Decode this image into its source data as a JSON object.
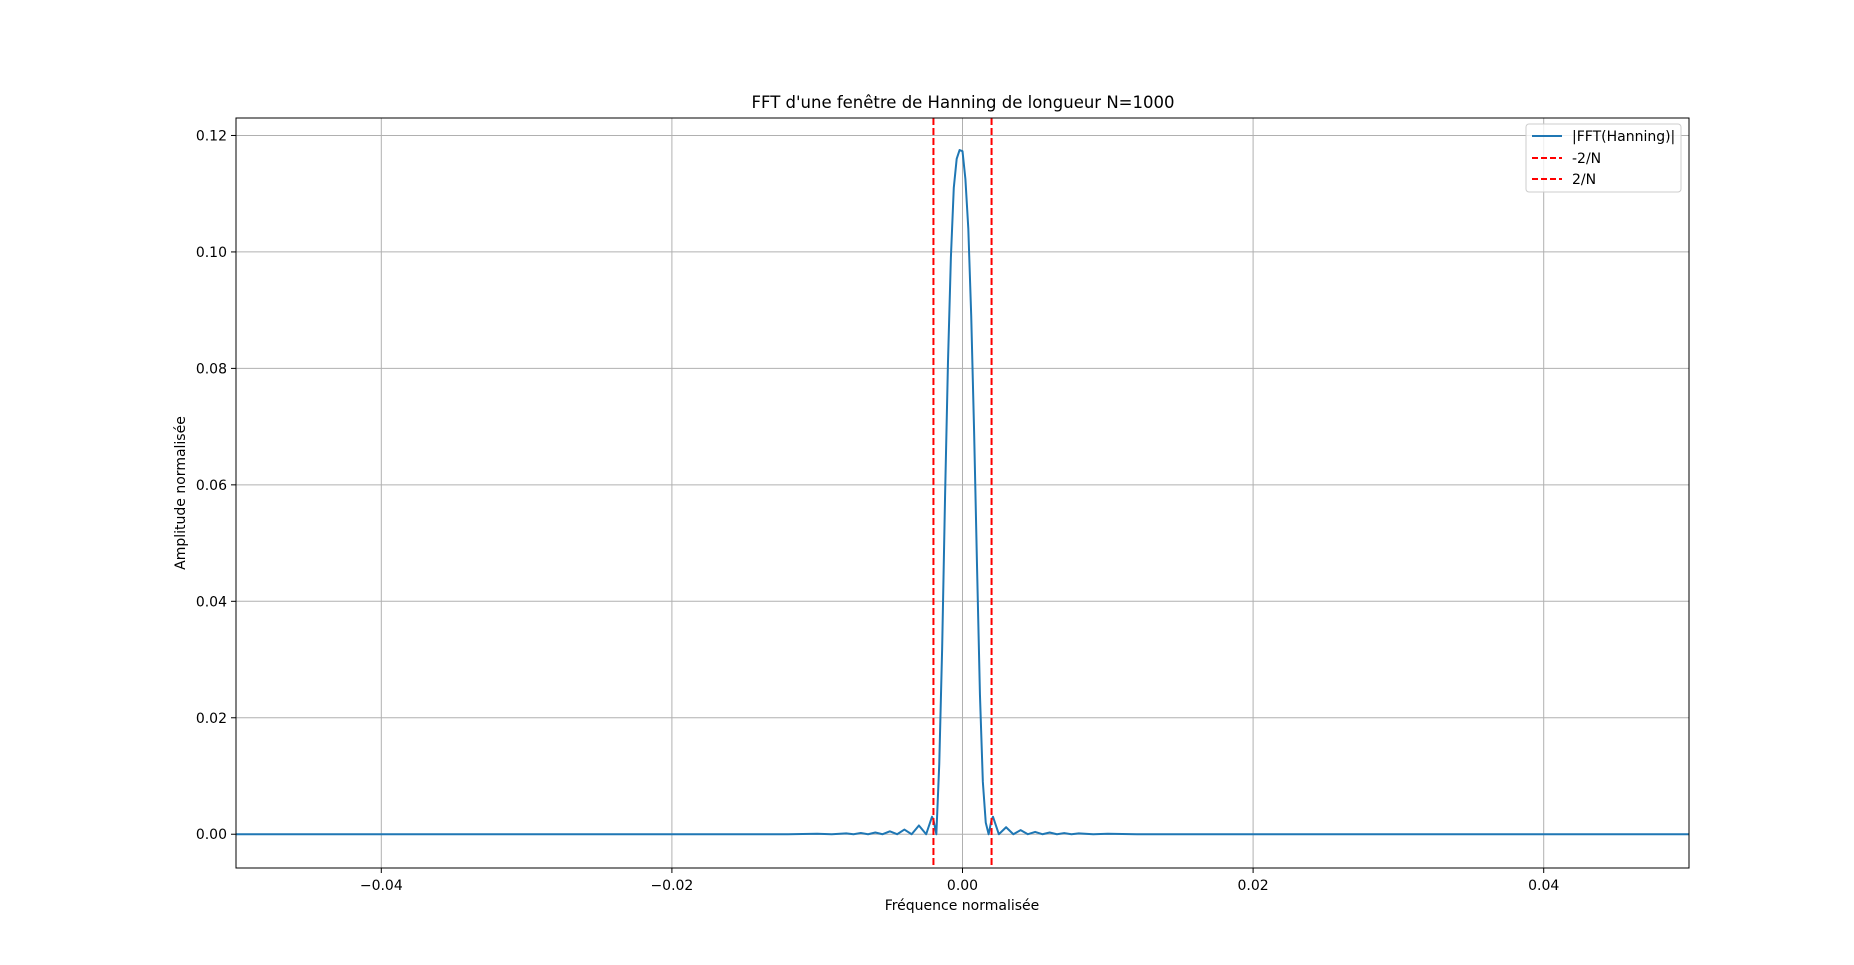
{
  "chart_data": {
    "type": "line",
    "title": "FFT d'une fenêtre de Hanning de longueur N=1000",
    "xlabel": "Fréquence normalisée",
    "ylabel": "Amplitude normalisée",
    "xlim": [
      -0.05,
      0.05
    ],
    "ylim": [
      -0.0058,
      0.123
    ],
    "xticks": [
      -0.04,
      -0.02,
      0.0,
      0.02,
      0.04
    ],
    "xtick_labels": [
      "−0.04",
      "−0.02",
      "0.00",
      "0.02",
      "0.04"
    ],
    "yticks": [
      0.0,
      0.02,
      0.04,
      0.06,
      0.08,
      0.1,
      0.12
    ],
    "ytick_labels": [
      "0.00",
      "0.02",
      "0.04",
      "0.06",
      "0.08",
      "0.10",
      "0.12"
    ],
    "grid": true,
    "legend_position": "top-right",
    "series": [
      {
        "name": "|FFT(Hanning)|",
        "color": "#1f77b4",
        "style": "solid",
        "x": [
          -0.05,
          -0.012,
          -0.01,
          -0.009,
          -0.008,
          -0.0075,
          -0.007,
          -0.0065,
          -0.006,
          -0.0055,
          -0.005,
          -0.0045,
          -0.004,
          -0.0035,
          -0.003,
          -0.0025,
          -0.0021,
          -0.002,
          -0.0018,
          -0.0016,
          -0.0014,
          -0.0012,
          -0.001,
          -0.0008,
          -0.0006,
          -0.0004,
          -0.0002,
          0.0,
          0.0002,
          0.0004,
          0.0006,
          0.0008,
          0.001,
          0.0012,
          0.0014,
          0.0016,
          0.0018,
          0.002,
          0.0021,
          0.0025,
          0.003,
          0.0035,
          0.004,
          0.0045,
          0.005,
          0.0055,
          0.006,
          0.0065,
          0.007,
          0.0075,
          0.008,
          0.009,
          0.01,
          0.012,
          0.05
        ],
        "y": [
          0.0,
          0.0,
          8e-05,
          0.0,
          0.00015,
          0.0,
          0.00022,
          0.0,
          0.0003,
          0.0,
          0.0005,
          0.0,
          0.0008,
          0.0,
          0.0015,
          0.0,
          0.003,
          0.0025,
          0.0,
          0.012,
          0.032,
          0.058,
          0.081,
          0.099,
          0.111,
          0.116,
          0.1175,
          0.1173,
          0.1125,
          0.104,
          0.089,
          0.069,
          0.046,
          0.024,
          0.009,
          0.002,
          0.0,
          0.0025,
          0.003,
          0.0,
          0.0012,
          0.0,
          0.0007,
          0.0,
          0.0004,
          0.0,
          0.0003,
          0.0,
          0.0002,
          0.0,
          0.00014,
          0.0,
          8e-05,
          0.0,
          0.0
        ]
      }
    ],
    "vlines": [
      {
        "name": "-2/N",
        "x": -0.002,
        "color": "#ff0000",
        "style": "dashed"
      },
      {
        "name": "2/N",
        "x": 0.002,
        "color": "#ff0000",
        "style": "dashed"
      }
    ]
  }
}
